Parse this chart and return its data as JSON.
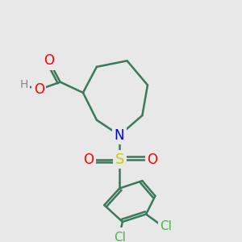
{
  "bg_color": "#e8e8e8",
  "bond_color": "#3a7a5a",
  "bond_lw": 1.8,
  "atom_colors": {
    "O": "#ff0000",
    "N": "#0000dd",
    "S": "#cccc00",
    "Cl": "#44bb44",
    "H": "#888888"
  },
  "figsize": [
    3.0,
    3.0
  ],
  "dpi": 100
}
